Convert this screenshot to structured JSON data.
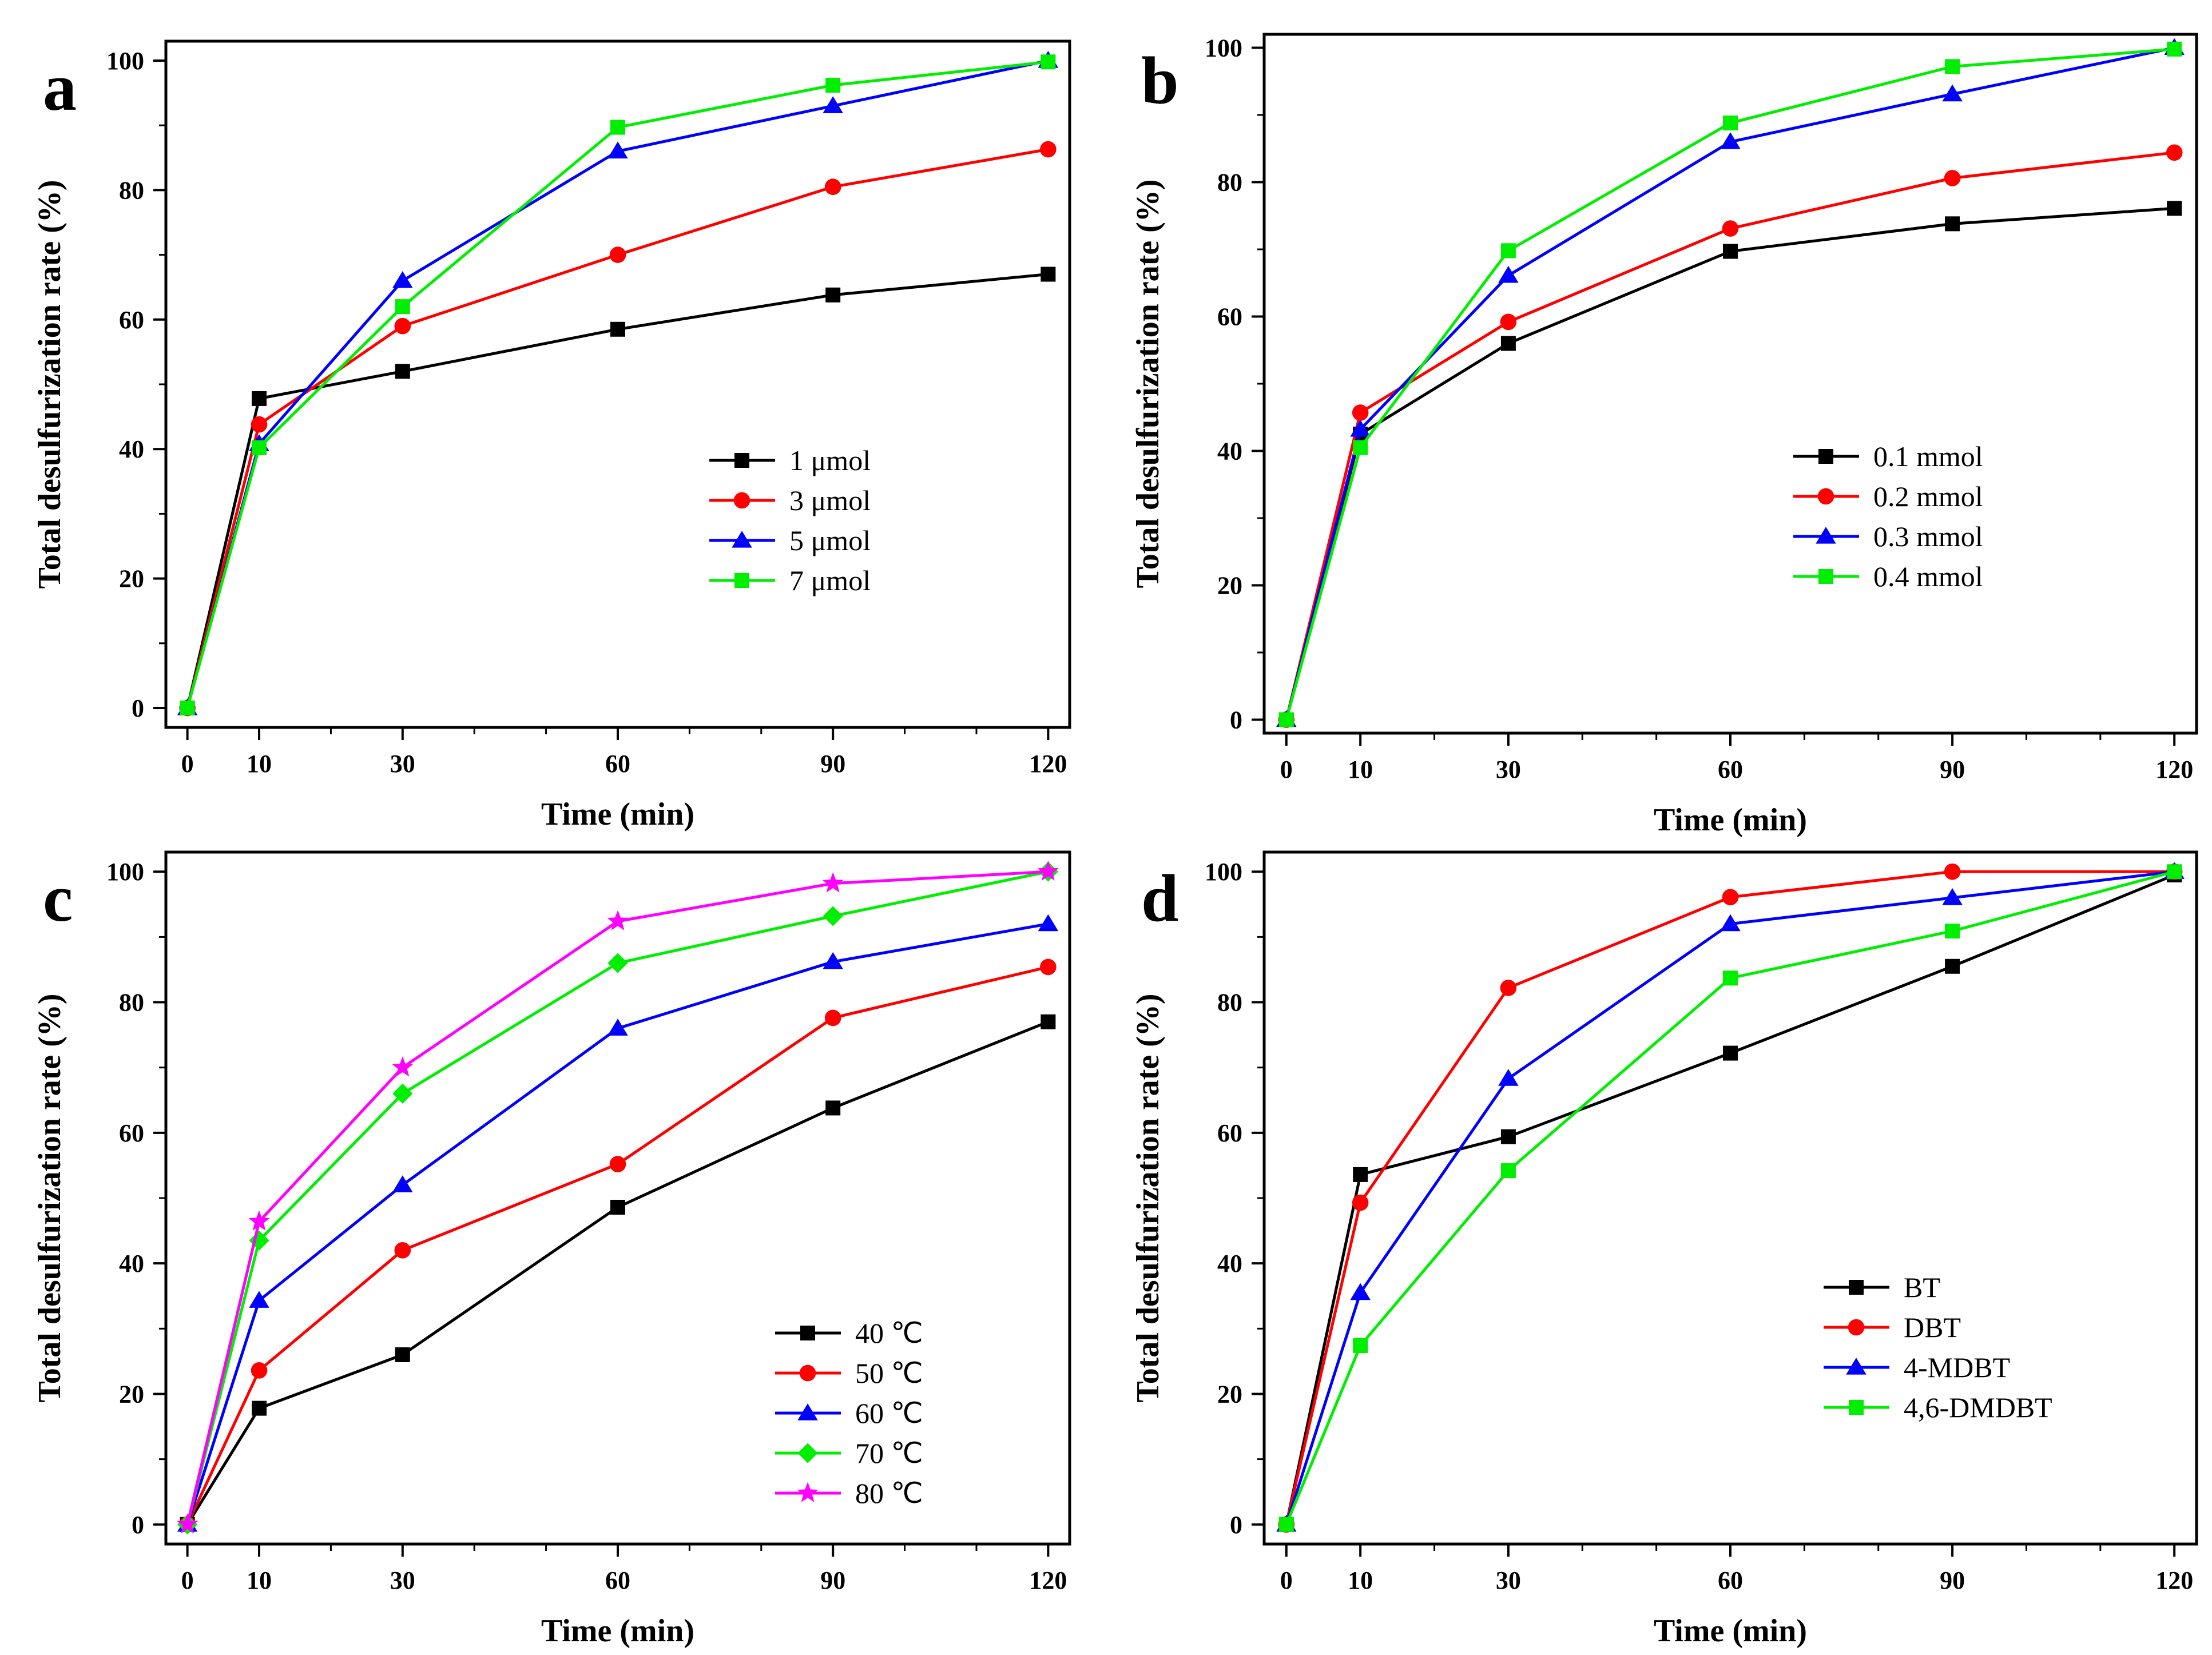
{
  "chart_data": [
    {
      "type": "line",
      "panel_label": "a",
      "xlabel": "Time (min)",
      "ylabel": "Total desulfurization rate (%)",
      "x": [
        0,
        10,
        30,
        60,
        90,
        120
      ],
      "x_tick_labels": [
        "0",
        "10",
        "30",
        "60",
        "90",
        "120"
      ],
      "xlim": [
        -3,
        123
      ],
      "ylim": [
        -3,
        103
      ],
      "y_ticks": [
        0,
        20,
        40,
        60,
        80,
        100
      ],
      "y_tick_labels": [
        "0",
        "20",
        "40",
        "60",
        "80",
        "100"
      ],
      "legend_position": "center-right",
      "series": [
        {
          "name": "1 μmol",
          "color": "#000000",
          "marker": "square",
          "values": [
            0,
            47.8,
            52.0,
            58.5,
            63.8,
            67.0
          ]
        },
        {
          "name": "3 μmol",
          "color": "#ff0000",
          "marker": "circle",
          "values": [
            0,
            43.8,
            59.0,
            70.0,
            80.5,
            86.3
          ]
        },
        {
          "name": "5 μmol",
          "color": "#0000ff",
          "marker": "triangle",
          "values": [
            0,
            40.8,
            66.0,
            86.0,
            93.0,
            100.0
          ]
        },
        {
          "name": "7 μmol",
          "color": "#00ee00",
          "marker": "square",
          "values": [
            0,
            40.2,
            62.0,
            89.7,
            96.2,
            99.8
          ]
        }
      ]
    },
    {
      "type": "line",
      "panel_label": "b",
      "xlabel": "Time (min)",
      "ylabel": "Total desulfurization rate (%)",
      "x": [
        0,
        10,
        30,
        60,
        90,
        120
      ],
      "x_tick_labels": [
        "0",
        "10",
        "30",
        "60",
        "90",
        "120"
      ],
      "xlim": [
        -3,
        123
      ],
      "ylim": [
        -2,
        102
      ],
      "y_ticks": [
        0,
        20,
        40,
        60,
        80,
        100
      ],
      "y_tick_labels": [
        "0",
        "20",
        "40",
        "60",
        "80",
        "100"
      ],
      "legend_position": "center-right",
      "series": [
        {
          "name": "0.1 mmol",
          "color": "#000000",
          "marker": "square",
          "values": [
            0,
            42.5,
            56.0,
            69.7,
            73.8,
            76.1
          ]
        },
        {
          "name": "0.2 mmol",
          "color": "#ff0000",
          "marker": "circle",
          "values": [
            0,
            45.7,
            59.2,
            73.1,
            80.6,
            84.4
          ]
        },
        {
          "name": "0.3 mmol",
          "color": "#0000ff",
          "marker": "triangle",
          "values": [
            0,
            43.2,
            66.1,
            86.0,
            93.1,
            100.0
          ]
        },
        {
          "name": "0.4 mmol",
          "color": "#00ee00",
          "marker": "square",
          "values": [
            0,
            40.5,
            69.8,
            88.8,
            97.2,
            99.8
          ]
        }
      ]
    },
    {
      "type": "line",
      "panel_label": "c",
      "xlabel": "Time (min)",
      "ylabel": "Total desulfurization rate (%)",
      "x": [
        0,
        10,
        30,
        60,
        90,
        120
      ],
      "x_tick_labels": [
        "0",
        "10",
        "30",
        "60",
        "90",
        "120"
      ],
      "xlim": [
        -3,
        123
      ],
      "ylim": [
        -3,
        103
      ],
      "y_ticks": [
        0,
        20,
        40,
        60,
        80,
        100
      ],
      "y_tick_labels": [
        "0",
        "20",
        "40",
        "60",
        "80",
        "100"
      ],
      "legend_position": "bottom-right",
      "series": [
        {
          "name": "40 ℃",
          "color": "#000000",
          "marker": "square",
          "values": [
            0,
            17.8,
            26.0,
            48.6,
            63.8,
            77.0
          ]
        },
        {
          "name": "50 ℃",
          "color": "#ff0000",
          "marker": "circle",
          "values": [
            0,
            23.6,
            42.0,
            55.2,
            77.6,
            85.4
          ]
        },
        {
          "name": "60 ℃",
          "color": "#0000ff",
          "marker": "triangle",
          "values": [
            0,
            34.3,
            52.0,
            76.0,
            86.2,
            92.0
          ]
        },
        {
          "name": "70 ℃",
          "color": "#00ee00",
          "marker": "diamond",
          "values": [
            0,
            43.5,
            66.0,
            86.0,
            93.2,
            100.0
          ]
        },
        {
          "name": "80 ℃",
          "color": "#ff00ff",
          "marker": "star",
          "values": [
            0,
            46.4,
            70.0,
            92.4,
            98.2,
            100.0
          ]
        }
      ]
    },
    {
      "type": "line",
      "panel_label": "d",
      "xlabel": "Time (min)",
      "ylabel": "Total desulfurization rate (%)",
      "x": [
        0,
        10,
        30,
        60,
        90,
        120
      ],
      "x_tick_labels": [
        "0",
        "10",
        "30",
        "60",
        "90",
        "120"
      ],
      "xlim": [
        -3,
        123
      ],
      "ylim": [
        -3,
        103
      ],
      "y_ticks": [
        0,
        20,
        40,
        60,
        80,
        100
      ],
      "y_tick_labels": [
        "0",
        "20",
        "40",
        "60",
        "80",
        "100"
      ],
      "legend_position": "bottom-right",
      "series": [
        {
          "name": "BT",
          "color": "#000000",
          "marker": "square",
          "values": [
            0,
            53.6,
            59.4,
            72.2,
            85.5,
            99.5
          ]
        },
        {
          "name": "DBT",
          "color": "#ff0000",
          "marker": "circle",
          "values": [
            0,
            49.3,
            82.2,
            96.1,
            100.0,
            100.0
          ]
        },
        {
          "name": "4-MDBT",
          "color": "#0000ff",
          "marker": "triangle",
          "values": [
            0,
            35.5,
            68.3,
            92.0,
            96.0,
            100.0
          ]
        },
        {
          "name": "4,6-DMDBT",
          "color": "#00ee00",
          "marker": "square",
          "values": [
            0,
            27.4,
            54.2,
            83.7,
            90.9,
            100.0
          ]
        }
      ]
    }
  ]
}
